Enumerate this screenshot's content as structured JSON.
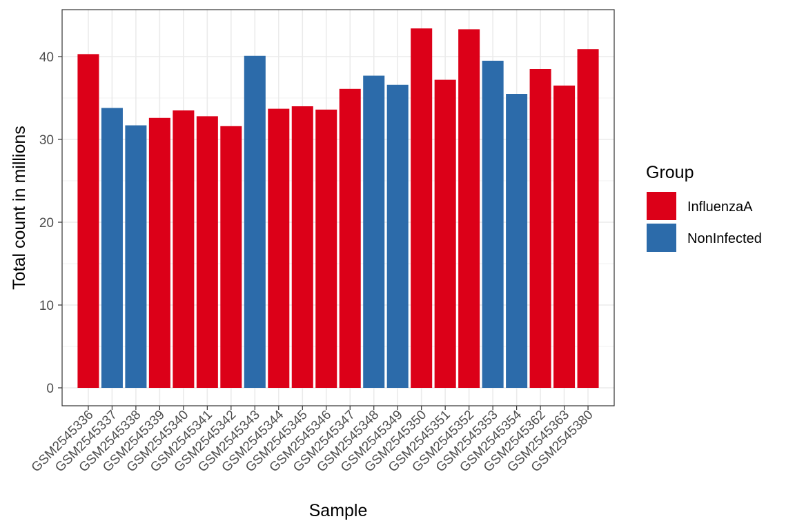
{
  "chart_data": {
    "type": "bar",
    "title": "",
    "xlabel": "Sample",
    "ylabel": "Total count in millions",
    "ylim": [
      0,
      45
    ],
    "yticks": [
      0,
      10,
      20,
      30,
      40
    ],
    "grid": true,
    "legend": {
      "title": "Group",
      "placement": "right",
      "entries": [
        {
          "name": "InfluenzaA",
          "color": "#DC0018"
        },
        {
          "name": "NonInfected",
          "color": "#2C6BAA"
        }
      ]
    },
    "categories": [
      "GSM2545336",
      "GSM2545337",
      "GSM2545338",
      "GSM2545339",
      "GSM2545340",
      "GSM2545341",
      "GSM2545342",
      "GSM2545343",
      "GSM2545344",
      "GSM2545345",
      "GSM2545346",
      "GSM2545347",
      "GSM2545348",
      "GSM2545349",
      "GSM2545350",
      "GSM2545351",
      "GSM2545352",
      "GSM2545353",
      "GSM2545354",
      "GSM2545362",
      "GSM2545363",
      "GSM2545380"
    ],
    "values": [
      40.3,
      33.8,
      31.7,
      32.6,
      33.5,
      32.8,
      31.6,
      40.1,
      33.7,
      34.0,
      33.6,
      36.1,
      37.7,
      36.6,
      43.4,
      37.2,
      43.3,
      39.5,
      35.5,
      38.5,
      36.5,
      40.9
    ],
    "groups": [
      "InfluenzaA",
      "NonInfected",
      "NonInfected",
      "InfluenzaA",
      "InfluenzaA",
      "InfluenzaA",
      "InfluenzaA",
      "NonInfected",
      "InfluenzaA",
      "InfluenzaA",
      "InfluenzaA",
      "InfluenzaA",
      "NonInfected",
      "NonInfected",
      "InfluenzaA",
      "InfluenzaA",
      "InfluenzaA",
      "NonInfected",
      "NonInfected",
      "InfluenzaA",
      "InfluenzaA",
      "InfluenzaA"
    ]
  }
}
